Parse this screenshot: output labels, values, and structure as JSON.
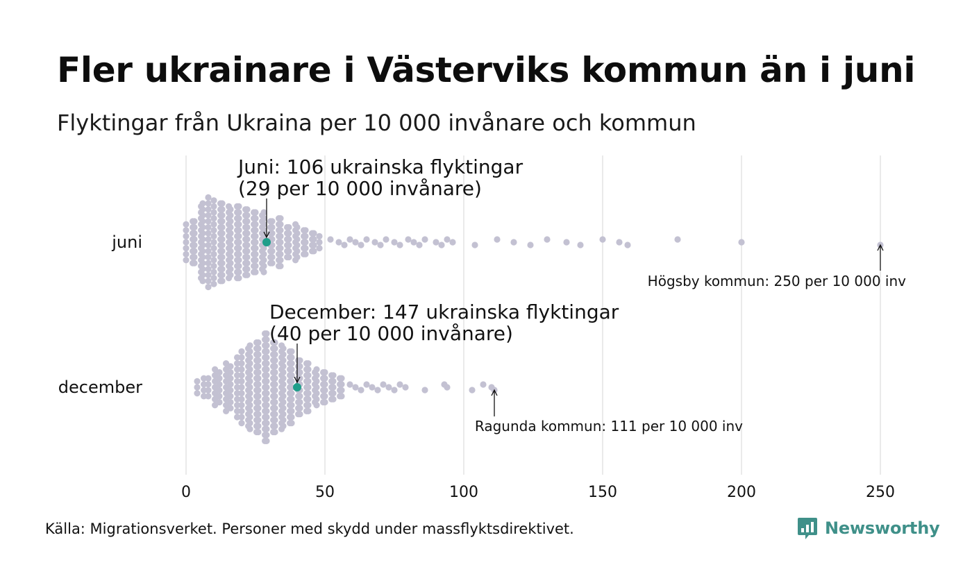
{
  "title": "Fler ukrainare i Västerviks kommun än i juni",
  "subtitle": "Flyktingar från Ukraina per 10 000 invånare och kommun",
  "source": "Källa: Migrationsverket. Personer med skydd under massflyktsdirektivet.",
  "brand": {
    "name": "Newsworthy",
    "color": "#3f9089"
  },
  "colors": {
    "dot": "#c3c1d2",
    "highlight": "#1f9e8a",
    "grid": "#d4d4d4",
    "text": "#111111"
  },
  "chart_data": {
    "type": "scatter",
    "subtype": "beeswarm",
    "xlim": [
      0,
      250
    ],
    "x_ticks": [
      0,
      50,
      100,
      150,
      200,
      250
    ],
    "grid": "vertical",
    "categories": [
      "juni",
      "december"
    ],
    "series": [
      {
        "category": "juni",
        "tail_values": [
          52,
          55,
          57,
          59,
          61,
          63,
          65,
          68,
          70,
          72,
          75,
          77,
          80,
          82,
          84,
          86,
          90,
          92,
          94,
          96,
          104,
          112,
          118,
          124,
          130,
          137,
          142,
          150,
          156,
          159,
          177,
          200,
          250
        ],
        "highlight": {
          "value": 29,
          "label_line1": "Juni: 106 ukrainska flyktingar",
          "label_line2": "(29 per 10 000 invånare)"
        },
        "extreme": {
          "value": 250,
          "label": "Högsby kommun: 250 per 10 000 inv"
        }
      },
      {
        "category": "december",
        "tail_values": [
          59,
          61,
          63,
          65,
          67,
          69,
          71,
          73,
          75,
          77,
          79,
          86,
          93,
          94,
          103,
          107,
          110,
          111
        ],
        "highlight": {
          "value": 40,
          "label_line1": "December: 147 ukrainska flyktingar",
          "label_line2": "(40 per 10 000 invånare)"
        },
        "extreme": {
          "value": 111,
          "label": "Ragunda kommun: 111 per 10 000 inv"
        }
      }
    ]
  }
}
